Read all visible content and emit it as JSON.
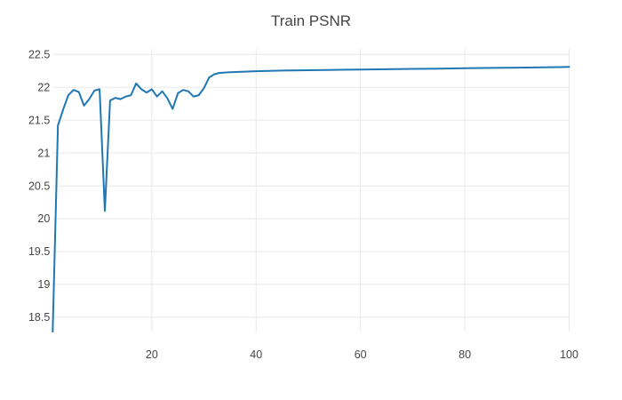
{
  "chart_data": {
    "type": "line",
    "title": "Train PSNR",
    "xlabel": "",
    "ylabel": "",
    "grid": true,
    "legend_visible": false,
    "background_color": "#ffffff",
    "grid_color": "#e8e8e8",
    "text_color": "#444444",
    "line_color": "#1f77b4",
    "x_range": [
      1,
      100
    ],
    "y_range": [
      18.275,
      22.585
    ],
    "x_ticks": [
      {
        "v": 20,
        "label": "20"
      },
      {
        "v": 40,
        "label": "40"
      },
      {
        "v": 60,
        "label": "60"
      },
      {
        "v": 80,
        "label": "80"
      },
      {
        "v": 100,
        "label": "100"
      }
    ],
    "y_ticks": [
      {
        "v": 22.5,
        "label": "22.5"
      },
      {
        "v": 22,
        "label": "22"
      },
      {
        "v": 21.5,
        "label": "21.5"
      },
      {
        "v": 21,
        "label": "21"
      },
      {
        "v": 20.5,
        "label": "20.5"
      },
      {
        "v": 20,
        "label": "20"
      },
      {
        "v": 19.5,
        "label": "19.5"
      },
      {
        "v": 19,
        "label": "19"
      },
      {
        "v": 18.5,
        "label": "18.5"
      }
    ],
    "series": [
      {
        "name": "Train PSNR",
        "points": [
          [
            1,
            18.28
          ],
          [
            2,
            21.42
          ],
          [
            3,
            21.66
          ],
          [
            4,
            21.88
          ],
          [
            5,
            21.96
          ],
          [
            6,
            21.93
          ],
          [
            7,
            21.72
          ],
          [
            8,
            21.82
          ],
          [
            9,
            21.95
          ],
          [
            10,
            21.97
          ],
          [
            11,
            20.12
          ],
          [
            12,
            21.8
          ],
          [
            13,
            21.84
          ],
          [
            14,
            21.82
          ],
          [
            15,
            21.86
          ],
          [
            16,
            21.88
          ],
          [
            17,
            22.06
          ],
          [
            18,
            21.97
          ],
          [
            19,
            21.92
          ],
          [
            20,
            21.97
          ],
          [
            21,
            21.86
          ],
          [
            22,
            21.94
          ],
          [
            23,
            21.83
          ],
          [
            24,
            21.67
          ],
          [
            25,
            21.91
          ],
          [
            26,
            21.96
          ],
          [
            27,
            21.94
          ],
          [
            28,
            21.86
          ],
          [
            29,
            21.88
          ],
          [
            30,
            21.99
          ],
          [
            31,
            22.15
          ],
          [
            32,
            22.2
          ],
          [
            33,
            22.22
          ],
          [
            35,
            22.23
          ],
          [
            40,
            22.245
          ],
          [
            45,
            22.255
          ],
          [
            50,
            22.26
          ],
          [
            55,
            22.265
          ],
          [
            60,
            22.27
          ],
          [
            65,
            22.275
          ],
          [
            70,
            22.28
          ],
          [
            75,
            22.285
          ],
          [
            80,
            22.29
          ],
          [
            85,
            22.295
          ],
          [
            90,
            22.3
          ],
          [
            95,
            22.305
          ],
          [
            100,
            22.31
          ]
        ]
      }
    ]
  }
}
